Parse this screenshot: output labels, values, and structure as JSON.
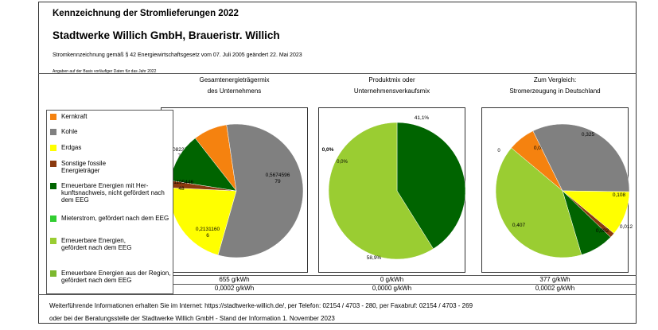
{
  "header": {
    "title": "Kennzeichnung der Stromlieferungen 2022",
    "company": "Stadtwerke Willich GmbH, Braueristr. Willich",
    "legal": "Stromkennzeichnung gemäß § 42 Energiewirtschaftsgesetz vom 07. Juli 2005 geändert 22. Mai 2023",
    "basis": "Angaben auf der Basis vorläufiger Daten für das Jahr 2022"
  },
  "columns": [
    {
      "title_line1": "Gesamtenergieträgermix",
      "title_line2": "des Unternehmens",
      "co2": "655 g/kWh",
      "waste": "0,0002 g/kWh"
    },
    {
      "title_line1": "Produktmix oder",
      "title_line2": "Unternehmensverkaufsmix",
      "co2": "0 g/kWh",
      "waste": "0,0000 g/kWh"
    },
    {
      "title_line1": "Zum Vergleich:",
      "title_line2": "Stromerzeugung in Deutschland",
      "co2": "377 g/kWh",
      "waste": "0,0002 g/kWh"
    }
  ],
  "legend": [
    {
      "label": "Kernkraft",
      "color": "#f5820f"
    },
    {
      "label": "Kohle",
      "color": "#808080"
    },
    {
      "label": "Erdgas",
      "color": "#ffff00"
    },
    {
      "label": "Sonstige fossile Energieträger",
      "color": "#8b3a0f"
    },
    {
      "label": "Erneuerbare Energien mit Her- kunftsnachweis, nicht gefördert nach dem EEG",
      "color": "#006400"
    },
    {
      "label": "Mieterstrom, gefördert nach dem EEG",
      "color": "#32cd32"
    },
    {
      "label": "Erneuerbare Energien, gefördert nach dem EEG",
      "color": "#9acd32"
    },
    {
      "label": "Erneuerbare Energien aus der Region, gefördert nach dem EEG",
      "color": "#7cb82f"
    }
  ],
  "chart_data": [
    {
      "type": "pie",
      "title": "Gesamtenergieträgermix des Unternehmens",
      "categories": [
        "Kernkraft",
        "Kohle",
        "Erdgas",
        "Sonstige fossile Energieträger",
        "Erneuerbare Energien mit Herkunftsnachweis, nicht gefördert nach dem EEG"
      ],
      "values": [
        0.0822587,
        0.5674596,
        0.213116,
        0.0176208,
        0.1195446
      ],
      "value_labels": [
        "0,0822587\n74",
        "0,5674596\n79",
        "0,2131160\n6",
        "176208\n39",
        "0,1195446\n48"
      ]
    },
    {
      "type": "pie",
      "title": "Produktmix oder Unternehmensverkaufsmix",
      "categories": [
        "Kernkraft",
        "Erneuerbare Energien mit Herkunftsnachweis, nicht gefördert nach dem EEG",
        "Erneuerbare Energien, gefördert nach dem EEG"
      ],
      "values": [
        0.0,
        0.411,
        0.589
      ],
      "value_labels": [
        "0,0%",
        "41,1%",
        "58,9%"
      ],
      "extra_labels": [
        "0,0%"
      ]
    },
    {
      "type": "pie",
      "title": "Zum Vergleich: Stromerzeugung in Deutschland",
      "categories": [
        "Kernkraft",
        "Kohle",
        "Erdgas",
        "Sonstige fossile Energieträger",
        "Erneuerbare Energien mit Herkunftsnachweis, nicht gefördert nach dem EEG",
        "Erneuerbare Energien, gefördert nach dem EEG"
      ],
      "values": [
        0.066,
        0.325,
        0.108,
        0.012,
        0.082,
        0.407
      ],
      "value_labels": [
        "0,066",
        "0,325",
        "0,108",
        "0,012",
        "0,082",
        "0,407"
      ],
      "extra_labels": [
        "0"
      ]
    }
  ],
  "footer": {
    "line1": "Weiterführende Informationen erhalten Sie im Internet: https://stadtwerke-willich.de/, per Telefon: 02154 / 4703 - 280, per Faxabruf: 02154 / 4703 - 269",
    "line2": "oder bei der Beratungsstelle der Stadtwerke Willich GmbH - Stand der Information 1. November 2023"
  }
}
